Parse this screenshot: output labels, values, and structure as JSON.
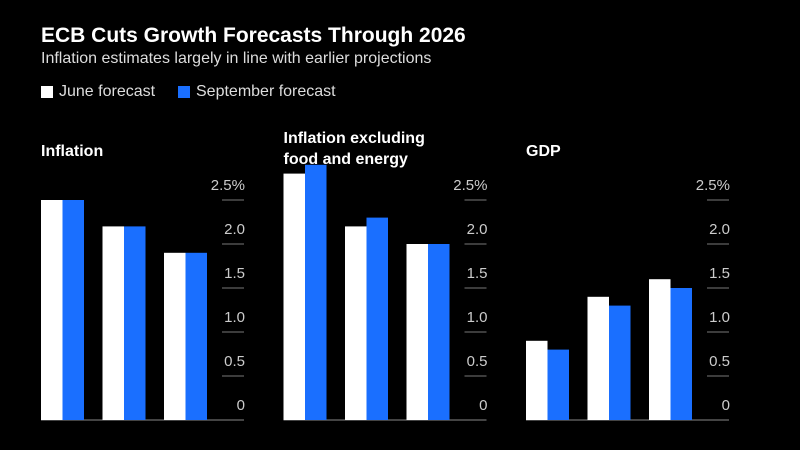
{
  "title": "ECB Cuts Growth Forecasts Through 2026",
  "subtitle": "Inflation estimates largely in line with earlier projections",
  "chart_data": [
    {
      "type": "bar",
      "title": "Inflation",
      "categories": [
        null,
        null,
        null
      ],
      "series": [
        {
          "name": "June forecast",
          "color": "#ffffff",
          "values": [
            2.5,
            2.2,
            1.9
          ]
        },
        {
          "name": "September forecast",
          "color": "#1a6fff",
          "values": [
            2.5,
            2.2,
            1.9
          ]
        }
      ],
      "ylim": [
        0,
        3
      ],
      "yticks": [
        0,
        0.5,
        {
          "value": 1,
          "label": "1.0"
        },
        1.5,
        {
          "value": 2,
          "label": "2.0"
        },
        {
          "value": 2.5,
          "label": "2.5%"
        }
      ]
    },
    {
      "type": "bar",
      "title": "Inflation excluding food and energy",
      "categories": [
        null,
        null,
        null
      ],
      "series": [
        {
          "color": "#ffffff",
          "values": [
            2.8,
            2.2,
            2.0
          ]
        },
        {
          "color": "#1a6fff",
          "values": [
            2.9,
            2.3,
            2.0
          ]
        }
      ],
      "ylim": [
        0,
        3
      ],
      "yticks": [
        0,
        0.5,
        {
          "value": 1,
          "label": "1.0"
        },
        1.5,
        {
          "value": 2,
          "label": "2.0"
        },
        {
          "value": 2.5,
          "label": "2.5%"
        }
      ]
    },
    {
      "type": "bar",
      "title": "GDP",
      "categories": [
        null,
        null,
        null
      ],
      "series": [
        {
          "color": "#ffffff",
          "values": [
            0.9,
            1.4,
            1.6
          ]
        },
        {
          "color": "#1a6fff",
          "values": [
            0.8,
            1.3,
            1.5
          ]
        }
      ],
      "ylim": [
        0,
        3
      ],
      "yticks": [
        0,
        0.5,
        {
          "value": 1,
          "label": "1.0"
        },
        1.5,
        {
          "value": 2,
          "label": "2.0"
        },
        {
          "value": 2.5,
          "label": "2.5%"
        }
      ]
    }
  ]
}
